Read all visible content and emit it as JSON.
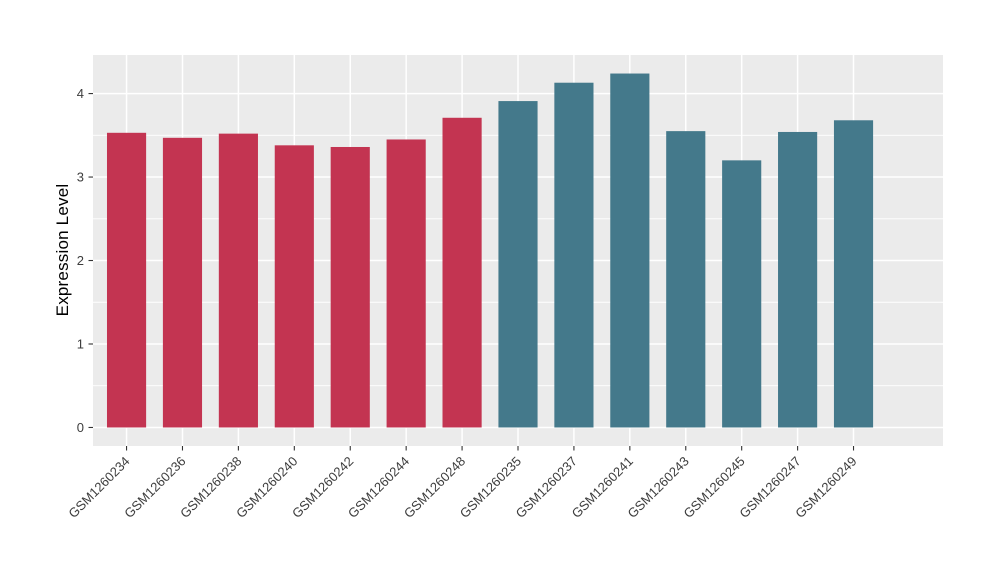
{
  "chart_data": {
    "type": "bar",
    "title": "",
    "xlabel": "",
    "ylabel": "Expression Level",
    "categories": [
      "GSM1260234",
      "GSM1260236",
      "GSM1260238",
      "GSM1260240",
      "GSM1260242",
      "GSM1260244",
      "GSM1260248",
      "GSM1260235",
      "GSM1260237",
      "GSM1260241",
      "GSM1260243",
      "GSM1260245",
      "GSM1260247",
      "GSM1260249"
    ],
    "values": [
      3.53,
      3.47,
      3.52,
      3.38,
      3.36,
      3.45,
      3.71,
      3.91,
      4.13,
      4.24,
      3.55,
      3.2,
      3.54,
      3.68
    ],
    "bar_colors": [
      "#C33451",
      "#C33451",
      "#C33451",
      "#C33451",
      "#C33451",
      "#C33451",
      "#C33451",
      "#44798B",
      "#44798B",
      "#44798B",
      "#44798B",
      "#44798B",
      "#44798B",
      "#44798B"
    ],
    "group_colors": {
      "red_group": "#C33451",
      "teal_group": "#44798B"
    },
    "ylim": [
      0,
      4.46
    ],
    "yticks": [
      0,
      1,
      2,
      3,
      4
    ],
    "minor_yticks": [
      0.5,
      1.5,
      2.5,
      3.5
    ],
    "grid": "on",
    "legend_position": "none",
    "panel_bg": "#EBEBEB",
    "grid_color": "#FFFFFF",
    "axis_text_color": "#3d3d3d",
    "tick_mark_color": "#333333",
    "x_label_rotation_deg": -45
  }
}
